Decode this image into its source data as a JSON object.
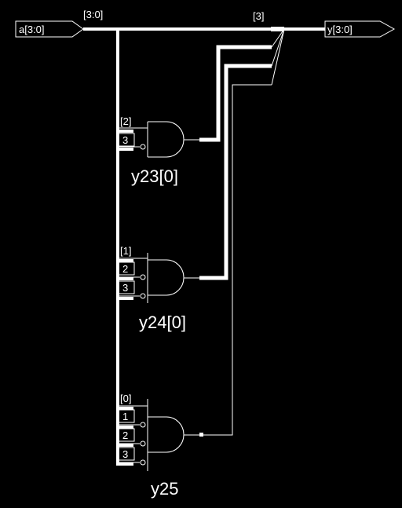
{
  "ports": {
    "input": "a[3:0]",
    "output": "y[3:0]"
  },
  "bus_labels": {
    "input_bus": "[3:0]",
    "output_tap": "[3]"
  },
  "gates": [
    {
      "instance": "y23[0]",
      "type": "and",
      "inputs": [
        {
          "bit": "[2]",
          "inverted": false
        },
        {
          "bit": "3",
          "inverted": true
        }
      ]
    },
    {
      "instance": "y24[0]",
      "type": "and",
      "inputs": [
        {
          "bit": "[1]",
          "inverted": false
        },
        {
          "bit": "2",
          "inverted": true
        },
        {
          "bit": "3",
          "inverted": true
        }
      ]
    },
    {
      "instance": "y25",
      "type": "and",
      "inputs": [
        {
          "bit": "[0]",
          "inverted": false
        },
        {
          "bit": "1",
          "inverted": true
        },
        {
          "bit": "2",
          "inverted": true
        },
        {
          "bit": "3",
          "inverted": true
        }
      ]
    }
  ],
  "colors": {
    "background": "#000000",
    "wire": "#ffffff"
  }
}
